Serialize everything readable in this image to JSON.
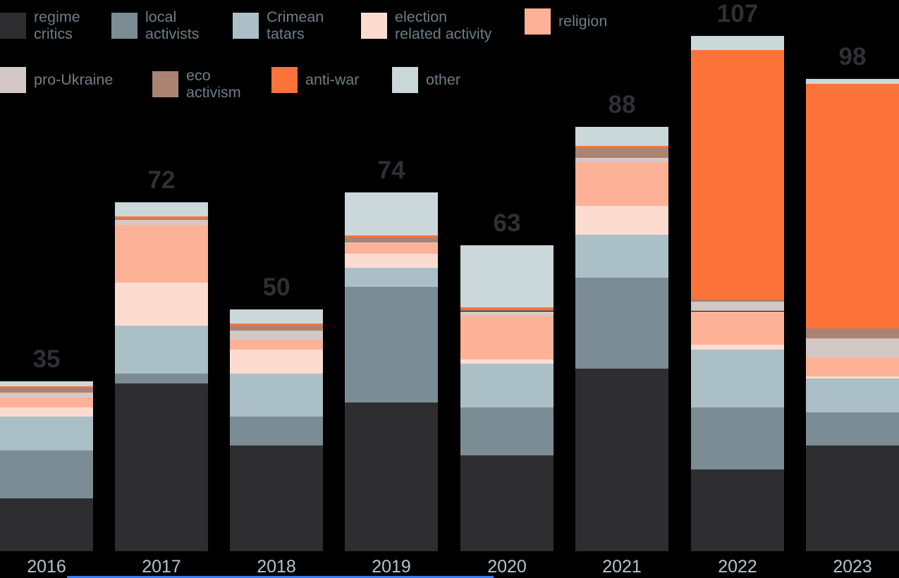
{
  "colors": {
    "background": "#000000",
    "total_label": "#2e3032",
    "year_label": "#b3c5cb",
    "legend_text": "#6d7e87",
    "selection_strip": "#3b7df0"
  },
  "legend": {
    "rows": [
      [
        {
          "key": "regime-critics",
          "label": "regime\ncritics",
          "color": "#2e2e30"
        },
        {
          "key": "local-activists",
          "label": "local\nactivists",
          "color": "#7b8c94"
        },
        {
          "key": "crimean-tatars",
          "label": "Crimean\ntatars",
          "color": "#abbfc6"
        },
        {
          "key": "election-related-activity",
          "label": "election\nrelated activity",
          "color": "#fcdcd1"
        },
        {
          "key": "religion",
          "label": "religion",
          "color": "#fdb298"
        }
      ],
      [
        {
          "key": "pro-ukraine",
          "label": "pro-Ukraine",
          "color": "#d4c8c6"
        },
        {
          "key": "eco-activism",
          "label": "eco\nactivism",
          "color": "#ab8372"
        },
        {
          "key": "anti-war",
          "label": "anti-war",
          "color": "#fb7338"
        },
        {
          "key": "other",
          "label": "other",
          "color": "#cbd8da"
        }
      ]
    ]
  },
  "chart_data": {
    "type": "bar",
    "stacked": true,
    "categories": [
      "2016",
      "2017",
      "2018",
      "2019",
      "2020",
      "2021",
      "2022",
      "2023"
    ],
    "totals": [
      35,
      72,
      50,
      74,
      63,
      88,
      107,
      98
    ],
    "series": [
      {
        "name": "regime critics",
        "color": "#2e2e30",
        "values": [
          11,
          35,
          22,
          31,
          20,
          38,
          17,
          22
        ]
      },
      {
        "name": "local activists",
        "color": "#7b8c94",
        "values": [
          10,
          2,
          6,
          24,
          10,
          19,
          13,
          7
        ]
      },
      {
        "name": "Crimean tatars",
        "color": "#abbfc6",
        "values": [
          7,
          10,
          9,
          4,
          9,
          9,
          12,
          7
        ]
      },
      {
        "name": "election related activity",
        "color": "#fcdcd1",
        "values": [
          2,
          9,
          5,
          3,
          1,
          6,
          1,
          0
        ]
      },
      {
        "name": "religion",
        "color": "#fdb298",
        "values": [
          2,
          12,
          2,
          2,
          9,
          9,
          7,
          4
        ]
      },
      {
        "name": "pro-Ukraine",
        "color": "#d4c8c6",
        "values": [
          1,
          1,
          2,
          0,
          1,
          1,
          2,
          4
        ]
      },
      {
        "name": "eco activism",
        "color": "#ab8372",
        "values": [
          1,
          0,
          1,
          1,
          0,
          2,
          0,
          2
        ]
      },
      {
        "name": "anti-war",
        "color": "#fb7338",
        "values": [
          0,
          0,
          0,
          0,
          0,
          0,
          52,
          51
        ]
      },
      {
        "name": "other",
        "color": "#cbd8da",
        "values": [
          1,
          3,
          3,
          9,
          13,
          4,
          3,
          1
        ]
      }
    ],
    "title": "",
    "xlabel": "",
    "ylabel": "",
    "ylim": [
      0,
      110
    ],
    "grid": false,
    "axis_visible": false,
    "legend_position": "top-left",
    "total_labels_shown": true
  }
}
